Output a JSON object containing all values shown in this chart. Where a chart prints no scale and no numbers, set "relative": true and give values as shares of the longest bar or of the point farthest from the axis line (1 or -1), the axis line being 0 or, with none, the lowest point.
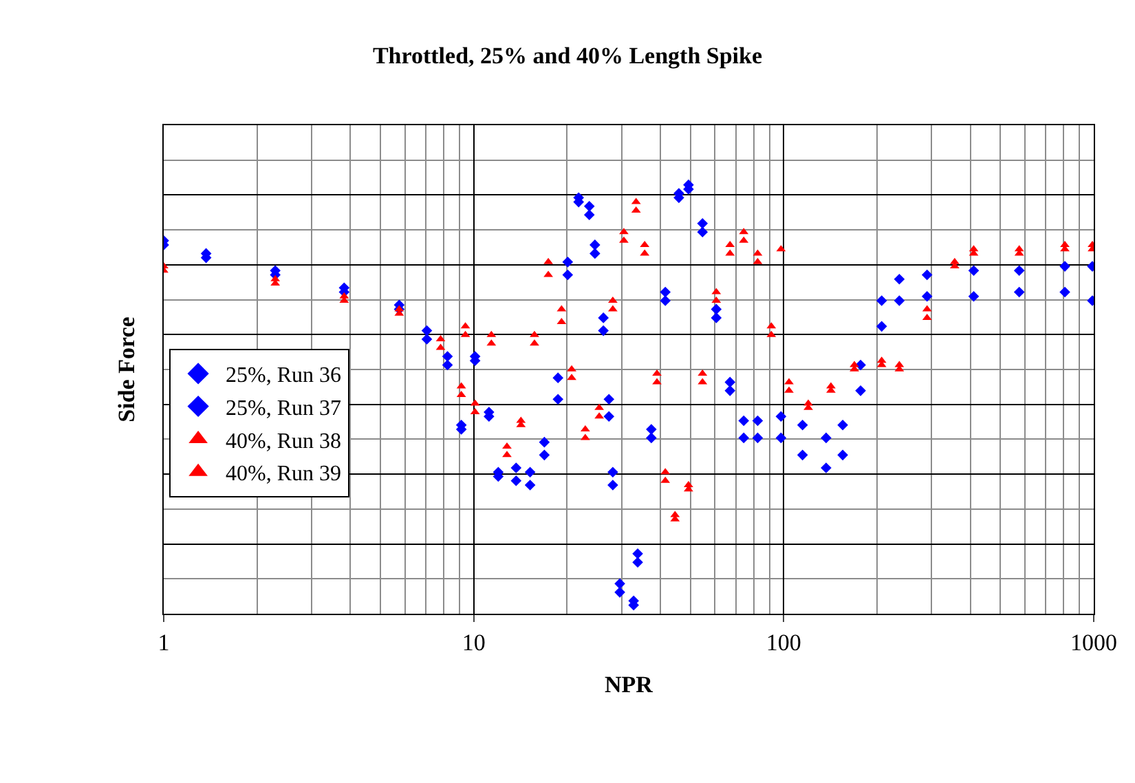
{
  "chart_data": {
    "type": "scatter",
    "title": "Throttled, 25% and 40% Length Spike",
    "xlabel": "NPR",
    "ylabel": "Side Force",
    "relative": true,
    "log": "x",
    "xlim": [
      1,
      1000
    ],
    "xticks": [
      1,
      10,
      100,
      1000
    ],
    "grid": true,
    "legend": "left",
    "series": [
      {
        "name": "25%, Run 36",
        "color": "#0000ff",
        "marker": "diamond",
        "x": [
          1,
          1.37,
          2.29,
          3.82,
          5.75,
          7.06,
          8.23,
          9.12,
          10.1,
          11.2,
          12.0,
          13.7,
          15.2,
          16.9,
          18.7,
          20.1,
          21.8,
          23.6,
          24.6,
          26.2,
          27.3,
          28.1,
          29.6,
          32.8,
          33.8,
          37.4,
          41.5,
          45.9,
          49.3,
          54.7,
          60.6,
          67.1,
          74.3,
          82.4,
          98,
          115,
          137,
          155,
          177,
          207,
          236,
          290,
          410,
          575,
          807,
          990
        ],
        "values": [
          0.87,
          0.84,
          0.8,
          0.76,
          0.72,
          0.66,
          0.6,
          0.43,
          0.6,
          0.47,
          0.33,
          0.34,
          0.33,
          0.37,
          0.5,
          0.79,
          0.97,
          0.95,
          0.86,
          0.69,
          0.5,
          0.33,
          0.07,
          0.03,
          0.12,
          0.41,
          0.73,
          0.97,
          1.0,
          0.91,
          0.71,
          0.54,
          0.45,
          0.45,
          0.46,
          0.44,
          0.41,
          0.44,
          0.58,
          0.73,
          0.78,
          0.79,
          0.8,
          0.8,
          0.81,
          0.81
        ]
      },
      {
        "name": "25%, Run 37",
        "color": "#0000ff",
        "marker": "diamond",
        "x": [
          1,
          1.37,
          2.29,
          3.82,
          5.75,
          7.06,
          8.23,
          9.12,
          10.1,
          11.2,
          12.0,
          13.7,
          15.2,
          16.9,
          18.7,
          20.1,
          21.8,
          23.6,
          24.6,
          26.2,
          27.3,
          28.1,
          29.6,
          32.8,
          33.8,
          37.4,
          41.5,
          45.9,
          49.3,
          54.7,
          60.6,
          67.1,
          74.3,
          82.4,
          98,
          115,
          137,
          155,
          177,
          207,
          236,
          290,
          410,
          575,
          807,
          990
        ],
        "values": [
          0.86,
          0.83,
          0.79,
          0.75,
          0.71,
          0.64,
          0.58,
          0.44,
          0.59,
          0.46,
          0.32,
          0.31,
          0.3,
          0.4,
          0.55,
          0.82,
          0.96,
          0.93,
          0.84,
          0.66,
          0.46,
          0.3,
          0.05,
          0.02,
          0.14,
          0.43,
          0.75,
          0.98,
          0.99,
          0.89,
          0.69,
          0.52,
          0.41,
          0.41,
          0.41,
          0.37,
          0.34,
          0.37,
          0.52,
          0.67,
          0.73,
          0.74,
          0.74,
          0.75,
          0.75,
          0.73
        ]
      },
      {
        "name": "40%, Run 38",
        "color": "#ff0000",
        "marker": "triangle",
        "x": [
          1,
          2.29,
          3.82,
          5.75,
          7.82,
          9.12,
          9.4,
          10.1,
          11.4,
          12.8,
          14.2,
          15.7,
          17.4,
          19.2,
          20.7,
          22.9,
          25.4,
          28.1,
          30.5,
          33.4,
          35.6,
          39.0,
          41.5,
          44.6,
          49.3,
          54.7,
          60.6,
          67.1,
          74.3,
          82.4,
          91.2,
          104,
          120,
          142,
          169,
          207,
          236,
          290,
          356,
          410,
          575,
          807,
          990
        ],
        "values": [
          0.81,
          0.78,
          0.74,
          0.71,
          0.64,
          0.53,
          0.67,
          0.49,
          0.65,
          0.39,
          0.45,
          0.65,
          0.82,
          0.71,
          0.57,
          0.43,
          0.48,
          0.73,
          0.89,
          0.96,
          0.86,
          0.56,
          0.33,
          0.23,
          0.3,
          0.56,
          0.75,
          0.86,
          0.89,
          0.84,
          0.67,
          0.54,
          0.49,
          0.53,
          0.58,
          0.59,
          0.58,
          0.71,
          0.82,
          0.85,
          0.85,
          0.86,
          0.86
        ]
      },
      {
        "name": "40%, Run 39",
        "color": "#ff0000",
        "marker": "triangle",
        "x": [
          1,
          2.29,
          3.82,
          5.75,
          7.82,
          9.12,
          9.4,
          10.1,
          11.4,
          12.8,
          14.2,
          15.7,
          17.4,
          19.2,
          20.7,
          22.9,
          25.4,
          28.1,
          30.5,
          33.4,
          35.6,
          39.0,
          41.5,
          44.6,
          49.3,
          54.7,
          60.6,
          67.1,
          74.3,
          82.4,
          91.2,
          98,
          104,
          120,
          142,
          169,
          207,
          236,
          290,
          356,
          410,
          575,
          807,
          990
        ],
        "values": [
          0.8,
          0.77,
          0.73,
          0.7,
          0.62,
          0.51,
          0.65,
          0.47,
          0.63,
          0.37,
          0.44,
          0.63,
          0.79,
          0.68,
          0.55,
          0.41,
          0.46,
          0.71,
          0.87,
          0.94,
          0.84,
          0.54,
          0.31,
          0.22,
          0.29,
          0.54,
          0.73,
          0.84,
          0.87,
          0.82,
          0.65,
          0.85,
          0.52,
          0.48,
          0.52,
          0.57,
          0.58,
          0.57,
          0.69,
          0.81,
          0.84,
          0.84,
          0.85,
          0.85
        ]
      }
    ]
  }
}
